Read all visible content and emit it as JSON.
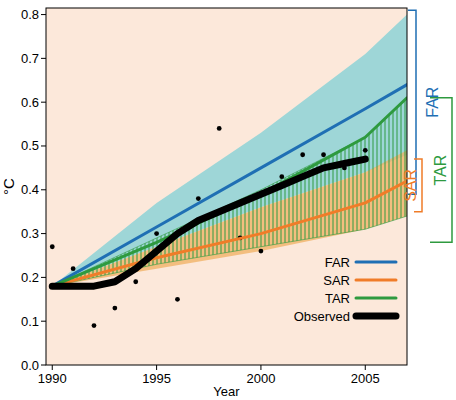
{
  "chart_data": {
    "type": "line",
    "x_label": "Year",
    "y_label": "°C",
    "xlim": [
      1989.7,
      2007
    ],
    "ylim": [
      0,
      0.815
    ],
    "xticks": [
      1990,
      1995,
      2000,
      2005
    ],
    "yticks": [
      {
        "value": 0,
        "label": "0.0"
      },
      0.1,
      0.2,
      0.3,
      0.4,
      0.5,
      0.6,
      0.7,
      0.8
    ],
    "legend": "lower right",
    "series": [
      {
        "name": "FAR",
        "color": "#1f6fb4",
        "band_color": "#7fd0d6",
        "band_style": "fill",
        "x": [
          1990,
          1995,
          2000,
          2005,
          2007
        ],
        "values": [
          0.18,
          0.315,
          0.45,
          0.585,
          0.64
        ],
        "lower": [
          0.18,
          0.27,
          0.36,
          0.44,
          0.48
        ],
        "upper": [
          0.18,
          0.37,
          0.53,
          0.71,
          0.8
        ],
        "range": [
          0.39,
          0.81
        ]
      },
      {
        "name": "SAR",
        "color": "#f07c28",
        "band_color": "#f0b060",
        "band_style": "fill",
        "x": [
          1990,
          1995,
          2000,
          2005,
          2007
        ],
        "values": [
          0.18,
          0.245,
          0.3,
          0.37,
          0.42
        ],
        "lower": [
          0.18,
          0.22,
          0.26,
          0.31,
          0.34
        ],
        "upper": [
          0.18,
          0.27,
          0.36,
          0.44,
          0.49
        ],
        "range": [
          0.35,
          0.47
        ]
      },
      {
        "name": "TAR",
        "color": "#2e9a3f",
        "band_color": "#2e9a3f",
        "band_style": "hatch",
        "x": [
          1990,
          1995,
          2000,
          2005,
          2007
        ],
        "values": [
          0.18,
          0.28,
          0.39,
          0.52,
          0.61
        ],
        "lower": [
          0.18,
          0.23,
          0.27,
          0.31,
          0.34
        ],
        "upper": [
          0.18,
          0.29,
          0.4,
          0.52,
          0.61
        ],
        "range": [
          0.28,
          0.61
        ]
      },
      {
        "name": "Observed",
        "color": "#000000",
        "x": [
          1990,
          1991,
          1992,
          1993,
          1994,
          1995,
          1996,
          1997,
          1998,
          1999,
          2000,
          2001,
          2002,
          2003,
          2004,
          2005
        ],
        "values": [
          0.18,
          0.18,
          0.18,
          0.19,
          0.22,
          0.26,
          0.3,
          0.33,
          0.35,
          0.37,
          0.39,
          0.41,
          0.43,
          0.45,
          0.46,
          0.47
        ]
      }
    ],
    "points": {
      "color": "#000000",
      "marker": "circle",
      "x": [
        1990,
        1991,
        1992,
        1993,
        1994,
        1995,
        1996,
        1997,
        1998,
        1999,
        2000,
        2001,
        2002,
        2003,
        2004,
        2005
      ],
      "values": [
        0.27,
        0.22,
        0.09,
        0.13,
        0.19,
        0.3,
        0.15,
        0.38,
        0.54,
        0.29,
        0.26,
        0.43,
        0.48,
        0.48,
        0.45,
        0.49
      ]
    }
  }
}
